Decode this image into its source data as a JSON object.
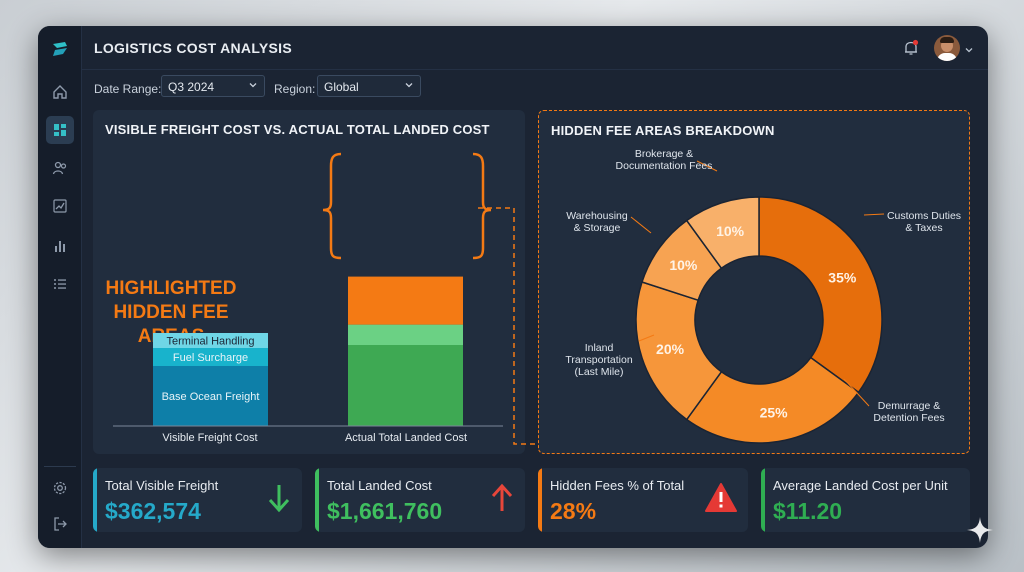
{
  "app": {
    "title": "LOGISTICS COST ANALYSIS"
  },
  "filters": {
    "date_label": "Date Range:",
    "date_value": "Q3 2024",
    "region_label": "Region:",
    "region_value": "Global"
  },
  "bar_panel": {
    "title": "VISIBLE FREIGHT COST VS. ACTUAL TOTAL LANDED COST",
    "callout": [
      "HIGHLIGHTED",
      "HIDDEN FEE",
      "AREAS"
    ],
    "chart_data": {
      "type": "bar",
      "stacked": true,
      "categories": [
        "Visible Freight Cost",
        "Actual Total Landed Cost"
      ],
      "series": [
        {
          "name": "Base Ocean Freight",
          "values": [
            100,
            100
          ],
          "color": "#0e7fa8"
        },
        {
          "name": "Fuel Surcharge",
          "values": [
            30,
            35
          ],
          "color": "#18b3cc"
        },
        {
          "name": "Terminal Handling",
          "values": [
            25,
            34
          ],
          "color": "#6fd6e6"
        },
        {
          "name": "Hidden Fees",
          "values": [
            0,
            80
          ],
          "color": "#f47a14"
        }
      ],
      "landed_colors": [
        "#3ea953",
        "#3ea953",
        "#6bd184",
        "#f47a14"
      ],
      "segment_labels": [
        "Base Ocean Freight",
        "Fuel Surcharge",
        "Terminal Handling"
      ]
    }
  },
  "donut_panel": {
    "title": "HIDDEN FEE AREAS BREAKDOWN",
    "chart_data": {
      "type": "pie",
      "slices": [
        {
          "label": "Customs Duties & Taxes",
          "lines": [
            "Customs Duties",
            "& Taxes"
          ],
          "value": 35,
          "display": "35%",
          "color": "#e66e0c"
        },
        {
          "label": "Demurrage & Detention Fees",
          "lines": [
            "Demurrage &",
            "Detention Fees"
          ],
          "value": 25,
          "display": "25%",
          "color": "#f48a26"
        },
        {
          "label": "Inland Transportation (Last Mile)",
          "lines": [
            "Inland",
            "Transportation",
            "(Last Mile)"
          ],
          "value": 20,
          "display": "20%",
          "color": "#f6963a"
        },
        {
          "label": "Warehousing & Storage",
          "lines": [
            "Warehousing",
            "& Storage"
          ],
          "value": 10,
          "display": "10%",
          "color": "#f7a352"
        },
        {
          "label": "Brokerage & Documentation Fees",
          "lines": [
            "Brokerage &",
            "Documentation Fees"
          ],
          "value": 10,
          "display": "10%",
          "color": "#f8b06a"
        }
      ]
    }
  },
  "kpis": [
    {
      "label": "Total Visible Freight",
      "value": "$362,574",
      "color": "#25a9c9",
      "icon": "arrow-down-icon"
    },
    {
      "label": "Total Landed Cost",
      "value": "$1,661,760",
      "color": "#3fbf5f",
      "icon": "arrow-up-icon"
    },
    {
      "label": "Hidden Fees % of Total",
      "value": "28%",
      "color": "#f47a14",
      "icon": "warning-icon"
    },
    {
      "label": "Average Landed Cost per Unit",
      "value": "$11.20",
      "color": "#2fae52",
      "icon": ""
    }
  ]
}
